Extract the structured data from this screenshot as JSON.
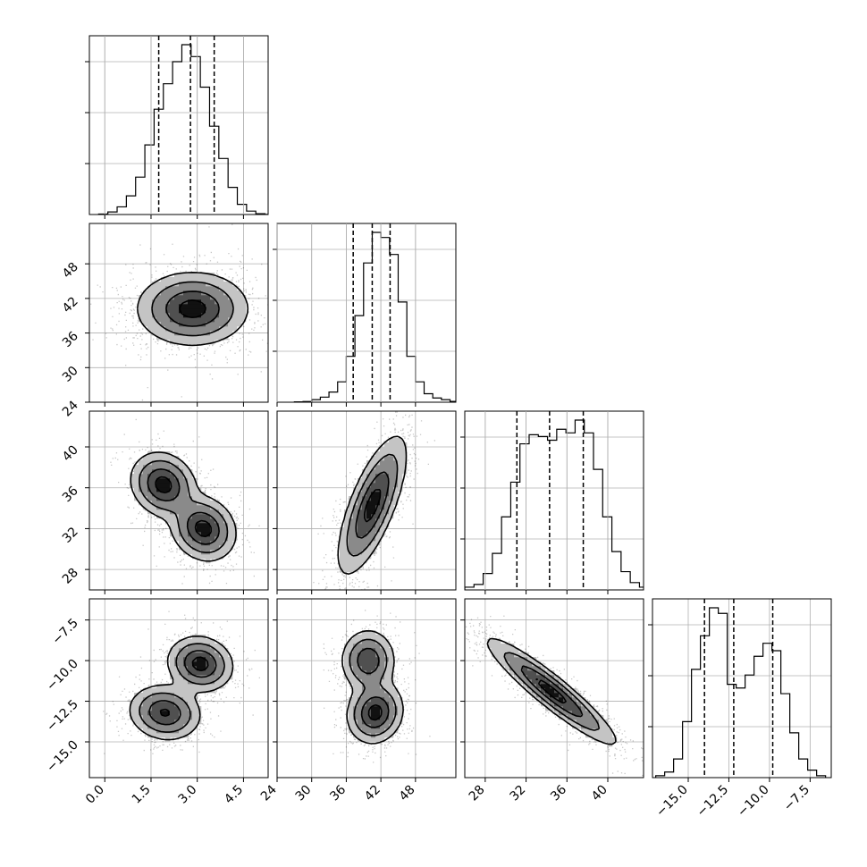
{
  "chart_data": {
    "type": "corner",
    "parameters": [
      {
        "lim": [
          -0.5,
          5.3
        ],
        "ticks": [
          0.0,
          1.5,
          3.0,
          4.5
        ],
        "tick_labels": [
          "0.0",
          "1.5",
          "3.0",
          "4.5"
        ],
        "hist": {
          "start": -0.2,
          "bin": 0.3,
          "values": [
            0.3,
            1.5,
            4.5,
            11,
            22,
            41,
            62,
            77,
            90,
            100,
            93,
            75,
            52,
            33,
            16,
            6,
            2,
            0.5,
            0.1
          ]
        },
        "quantiles": [
          1.75,
          2.78,
          3.55
        ]
      },
      {
        "lim": [
          24,
          55
        ],
        "ticks": [
          24,
          30,
          36,
          42,
          48
        ],
        "tick_labels": [
          "24",
          "30",
          "36",
          "42",
          "48"
        ],
        "hist": {
          "start": 27,
          "bin": 1.5,
          "values": [
            0.2,
            0.4,
            1.5,
            3,
            6,
            12,
            27,
            51,
            82,
            100,
            97,
            87,
            59,
            27,
            12,
            5,
            2.5,
            1.5,
            0.5
          ]
        },
        "quantiles": [
          37.2,
          40.5,
          43.6
        ]
      },
      {
        "lim": [
          26,
          43.5
        ],
        "ticks": [
          28,
          32,
          36,
          40
        ],
        "tick_labels": [
          "28",
          "32",
          "36",
          "40"
        ],
        "hist": {
          "start": 26,
          "bin": 0.9,
          "values": [
            1.5,
            3,
            9,
            20,
            40,
            59,
            80,
            85,
            84,
            82,
            88,
            86,
            93,
            86,
            66,
            40,
            21,
            10,
            4,
            1.5
          ]
        },
        "quantiles": [
          31.1,
          34.3,
          37.6
        ]
      },
      {
        "lim": [
          -17.2,
          -6.2
        ],
        "ticks": [
          -15.0,
          -12.5,
          -10.0,
          -7.5
        ],
        "tick_labels": [
          "−15.0",
          "−12.5",
          "−10.0",
          "−7.5"
        ],
        "hist": {
          "start": -17,
          "bin": 0.55,
          "values": [
            1,
            3,
            10,
            30,
            58,
            76,
            91,
            88,
            50,
            48,
            55,
            65,
            72,
            68,
            45,
            24,
            10,
            4,
            1
          ]
        },
        "quantiles": [
          -14.0,
          -12.2,
          -9.8
        ]
      }
    ],
    "pairs": [
      {
        "row": 1,
        "col": 0,
        "components": [
          {
            "mx": 2.85,
            "my": 40.2,
            "sx": 0.85,
            "sy": 3.0,
            "rho": 0.0,
            "w": 1.0
          }
        ]
      },
      {
        "row": 2,
        "col": 0,
        "components": [
          {
            "mx": 1.9,
            "my": 36.3,
            "sx": 0.5,
            "sy": 1.5,
            "rho": -0.15,
            "w": 0.5
          },
          {
            "mx": 3.2,
            "my": 32.0,
            "sx": 0.5,
            "sy": 1.5,
            "rho": -0.15,
            "w": 0.5
          }
        ]
      },
      {
        "row": 2,
        "col": 1,
        "components": [
          {
            "mx": 40.5,
            "my": 34.3,
            "sx": 2.8,
            "sy": 3.2,
            "rho": 0.72,
            "w": 1.0
          }
        ]
      },
      {
        "row": 3,
        "col": 0,
        "components": [
          {
            "mx": 1.95,
            "my": -13.2,
            "sx": 0.55,
            "sy": 0.8,
            "rho": -0.1,
            "w": 0.5
          },
          {
            "mx": 3.1,
            "my": -10.2,
            "sx": 0.5,
            "sy": 0.8,
            "rho": -0.1,
            "w": 0.5
          }
        ]
      },
      {
        "row": 3,
        "col": 1,
        "components": [
          {
            "mx": 39.8,
            "my": -10.0,
            "sx": 2.2,
            "sy": 0.9,
            "rho": 0.0,
            "w": 0.45
          },
          {
            "mx": 41.0,
            "my": -13.2,
            "sx": 2.3,
            "sy": 0.9,
            "rho": 0.1,
            "w": 0.55
          }
        ]
      },
      {
        "row": 3,
        "col": 2,
        "components": [
          {
            "mx": 34.5,
            "my": -11.9,
            "sx": 3.0,
            "sy": 1.55,
            "rho": -0.93,
            "w": 1.0
          }
        ]
      }
    ]
  }
}
